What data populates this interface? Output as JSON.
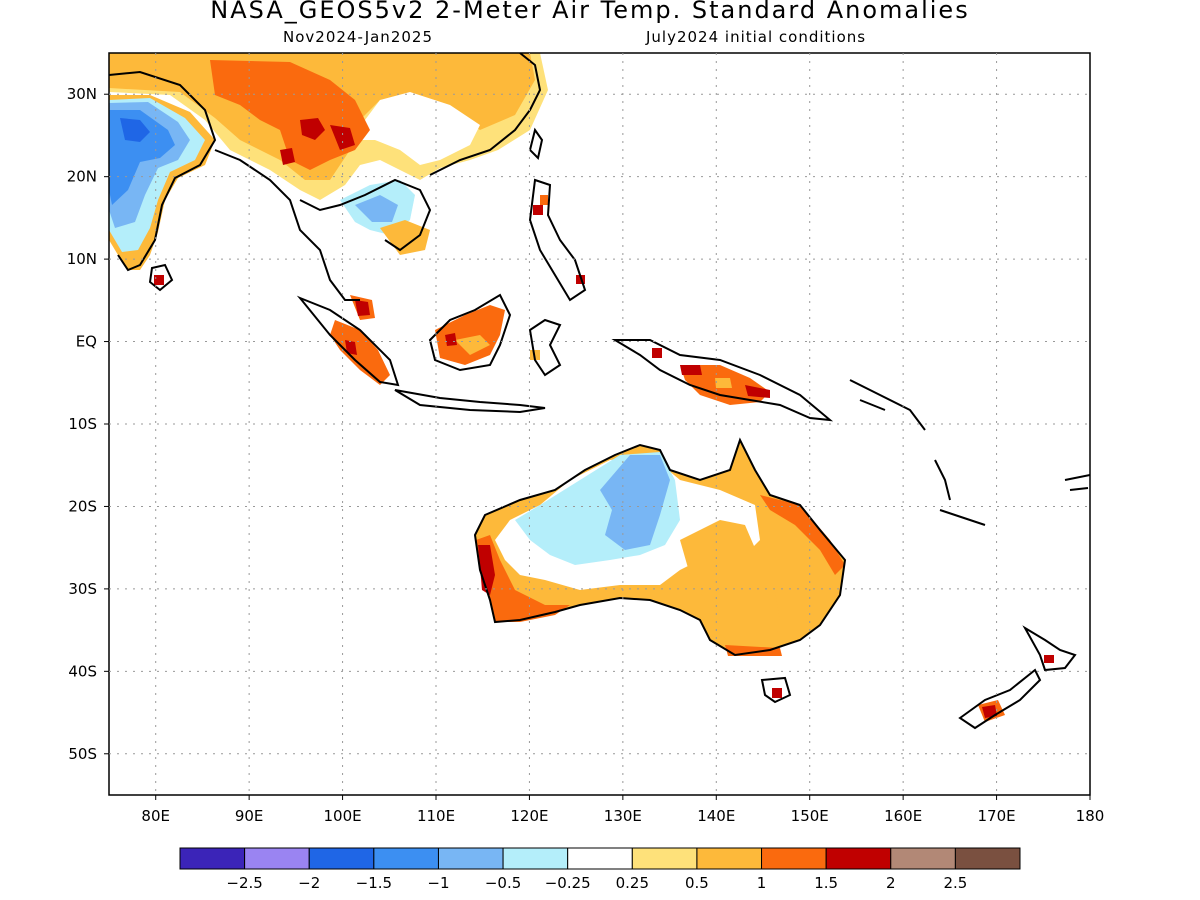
{
  "title": "NASA_GEOS5v2 2-Meter Air Temp. Standard Anomalies",
  "subtitle_left": "Nov2024-Jan2025",
  "subtitle_right": "July2024 initial conditions",
  "map": {
    "lon_range": [
      75,
      180
    ],
    "lat_range": [
      -55,
      35
    ],
    "lat_ticks": [
      {
        "value": 30,
        "label": "30N"
      },
      {
        "value": 20,
        "label": "20N"
      },
      {
        "value": 10,
        "label": "10N"
      },
      {
        "value": 0,
        "label": "EQ"
      },
      {
        "value": -10,
        "label": "10S"
      },
      {
        "value": -20,
        "label": "20S"
      },
      {
        "value": -30,
        "label": "30S"
      },
      {
        "value": -40,
        "label": "40S"
      },
      {
        "value": -50,
        "label": "50S"
      }
    ],
    "lon_ticks": [
      {
        "value": 80,
        "label": "80E"
      },
      {
        "value": 90,
        "label": "90E"
      },
      {
        "value": 100,
        "label": "100E"
      },
      {
        "value": 110,
        "label": "110E"
      },
      {
        "value": 120,
        "label": "120E"
      },
      {
        "value": 130,
        "label": "130E"
      },
      {
        "value": 140,
        "label": "140E"
      },
      {
        "value": 150,
        "label": "150E"
      },
      {
        "value": 160,
        "label": "160E"
      },
      {
        "value": 170,
        "label": "170E"
      },
      {
        "value": 180,
        "label": "180"
      }
    ],
    "grid": true,
    "gridline_style": "dotted"
  },
  "colorbar": {
    "colors": [
      "#3b24b8",
      "#9a84f2",
      "#1f66e6",
      "#3c8ff2",
      "#78b6f4",
      "#b4eefa",
      "#ffffff",
      "#fee17a",
      "#fdb93a",
      "#fa6a0e",
      "#c00000",
      "#b28876",
      "#7a5040"
    ],
    "labels": [
      "-2.5",
      "-2",
      "-1.5",
      "-1",
      "-0.5",
      "-0.25",
      "0.25",
      "0.5",
      "1",
      "1.5",
      "2",
      "2.5"
    ]
  }
}
